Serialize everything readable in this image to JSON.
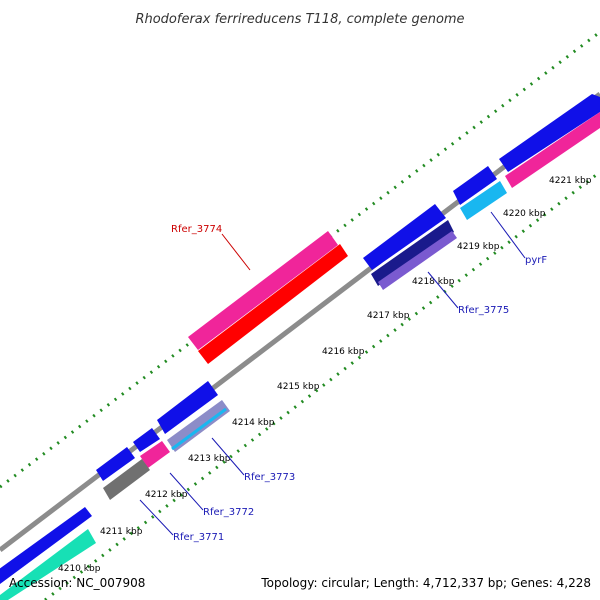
{
  "title": "Rhodoferax ferrireducens T118, complete genome",
  "footer": {
    "accession": "Accession: NC_007908",
    "summary": "Topology: circular; Length: 4,712,337 bp; Genes: 4,228"
  },
  "colors": {
    "backbone": "#8c8c8c",
    "dots": "#228b22",
    "label_blue": "#1a1ab5",
    "label_red": "#cc0000",
    "blue": "#1010e8",
    "pink": "#f0259a",
    "red": "#ff0000",
    "cyan": "#19b7f0",
    "navy": "#1a1a8c",
    "purple": "#7a5ad0",
    "gray": "#707070",
    "teal": "#17e0b5"
  },
  "ticks": [
    {
      "label": "4210 kbp"
    },
    {
      "label": "4211 kbp"
    },
    {
      "label": "4212 kbp"
    },
    {
      "label": "4213 kbp"
    },
    {
      "label": "4214 kbp"
    },
    {
      "label": "4215 kbp"
    },
    {
      "label": "4216 kbp"
    },
    {
      "label": "4217 kbp"
    },
    {
      "label": "4218 kbp"
    },
    {
      "label": "4219 kbp"
    },
    {
      "label": "4220 kbp"
    },
    {
      "label": "4221 kbp"
    }
  ],
  "labels": {
    "rfer_3774": "Rfer_3774",
    "rfer_3775": "Rfer_3775",
    "pyrf": "pyrF",
    "rfer_3773": "Rfer_3773",
    "rfer_3772": "Rfer_3772",
    "rfer_3771": "Rfer_3771"
  }
}
